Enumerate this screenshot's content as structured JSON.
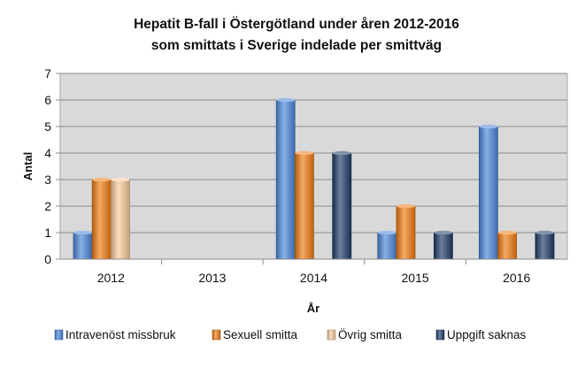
{
  "chart_data": {
    "type": "bar",
    "title_lines": [
      "Hepatit B-fall  i Östergötland under åren 2012-2016",
      "som smittats i Sverige indelade per smittväg"
    ],
    "xlabel": "År",
    "ylabel": "Antal",
    "ylim": [
      0,
      7
    ],
    "yticks": [
      0,
      1,
      2,
      3,
      4,
      5,
      6,
      7
    ],
    "grid": true,
    "legend_position": "bottom",
    "categories": [
      "2012",
      "2013",
      "2014",
      "2015",
      "2016"
    ],
    "series": [
      {
        "name": "Intravenöst missbruk",
        "color": "#4a86d8",
        "values": [
          1,
          0,
          6,
          1,
          5
        ]
      },
      {
        "name": "Sexuell smitta",
        "color": "#f07a10",
        "values": [
          3,
          0,
          4,
          2,
          1
        ]
      },
      {
        "name": "Övrig smitta",
        "color": "#f8c99a",
        "values": [
          3,
          0,
          0,
          0,
          0
        ]
      },
      {
        "name": "Uppgift saknas",
        "color": "#1f3a66",
        "values": [
          0,
          0,
          4,
          1,
          1
        ]
      }
    ]
  }
}
